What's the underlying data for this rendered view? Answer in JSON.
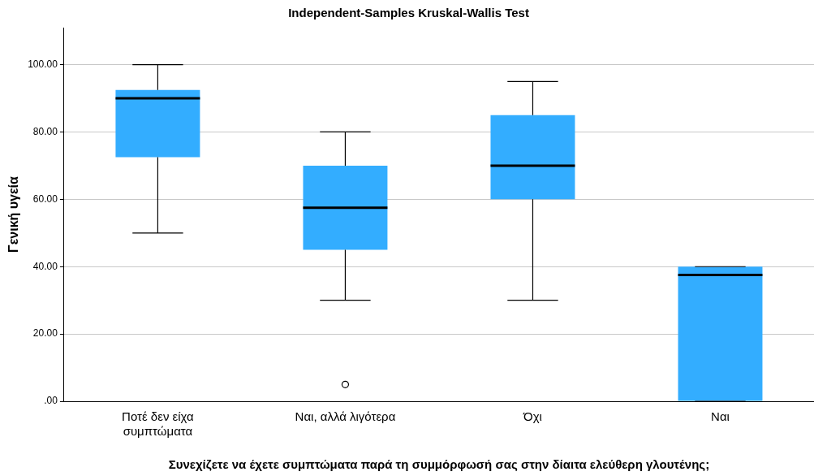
{
  "chart_data": {
    "type": "box",
    "title": "Independent-Samples Kruskal-Wallis Test",
    "xlabel": "Συνεχίζετε να έχετε συμπτώματα παρά τη συμμόρφωσή σας στην δίαιτα ελεύθερη γλουτένης;",
    "ylabel": "Γενική υγεία",
    "categories": [
      "Ποτέ δεν είχα συμπτώματα",
      "Ναι, αλλά λιγότερα",
      "Όχι",
      "Ναι"
    ],
    "color": "#33adff",
    "boxes": [
      {
        "low": 50,
        "q1": 72.5,
        "median": 90,
        "q3": 92.5,
        "high": 100
      },
      {
        "low": 30,
        "q1": 45,
        "median": 57.5,
        "q3": 70,
        "high": 80,
        "outliers": [
          5
        ]
      },
      {
        "low": 30,
        "q1": 60,
        "median": 70,
        "q3": 85,
        "high": 95
      },
      {
        "low": 0,
        "q1": 0,
        "median": 37.5,
        "q3": 40,
        "high": 40
      }
    ],
    "ylim": [
      0,
      111
    ],
    "yticks": [
      {
        "value": 0,
        "label": ".00"
      },
      {
        "value": 20,
        "label": "20.00"
      },
      {
        "value": 40,
        "label": "40.00"
      },
      {
        "value": 60,
        "label": "60.00"
      },
      {
        "value": 80,
        "label": "80.00"
      },
      {
        "value": 100,
        "label": "100.00"
      }
    ],
    "grid": "y",
    "legend": false
  }
}
